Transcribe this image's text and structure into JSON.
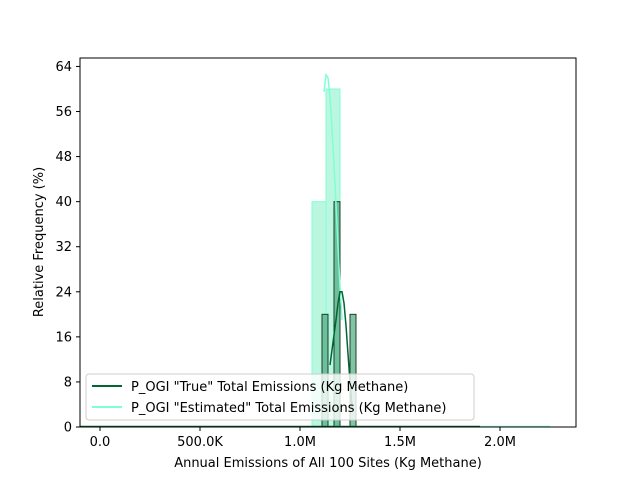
{
  "chart_data": {
    "type": "histogram",
    "xlabel": "Annual Emissions of All 100 Sites (Kg Methane)",
    "ylabel": "Relative Frequency (%)",
    "xlim": [
      -100000,
      2380000
    ],
    "ylim": [
      0,
      65.5
    ],
    "x_ticks": [
      0,
      500000,
      1000000,
      1500000,
      2000000
    ],
    "x_tick_labels": [
      "0.0",
      "500.0K",
      "1.0M",
      "1.5M",
      "2.0M"
    ],
    "y_ticks": [
      0,
      8,
      16,
      24,
      32,
      40,
      48,
      56,
      64
    ],
    "y_tick_labels": [
      "0",
      "8",
      "16",
      "24",
      "32",
      "40",
      "48",
      "56",
      "64"
    ],
    "grid": false,
    "legend_position": "lower-left",
    "series": [
      {
        "name": "P_OGI \"Estimated\" Total Emissions (Kg Methane)",
        "color": "#7fffd4",
        "fill": "#b7f5df",
        "bins": [
          {
            "x0": 1060000,
            "x1": 1130000,
            "value": 40
          },
          {
            "x0": 1130000,
            "x1": 1200000,
            "value": 60
          }
        ],
        "kde": {
          "x": [
            1120000,
            1130000,
            1140000,
            1150000,
            1160000,
            1170000,
            1180000,
            1190000,
            1200000,
            1210000
          ],
          "y": [
            59.5,
            62.5,
            62,
            58.5,
            53,
            46.5,
            39.5,
            32,
            25,
            19
          ]
        }
      },
      {
        "name": "P_OGI \"True\" Total Emissions (Kg Methane)",
        "color": "#006633",
        "fill": "#4daa7f",
        "bins": [
          {
            "x0": 1110000,
            "x1": 1140000,
            "value": 20
          },
          {
            "x0": 1170000,
            "x1": 1200000,
            "value": 40
          },
          {
            "x0": 1250000,
            "x1": 1280000,
            "value": 20
          }
        ],
        "kde": {
          "x": [
            1150000,
            1165000,
            1180000,
            1190000,
            1200000,
            1210000,
            1220000,
            1230000,
            1240000,
            1250000,
            1262000
          ],
          "y": [
            11,
            15,
            19,
            22,
            24,
            24,
            22,
            18,
            13,
            8,
            3
          ]
        }
      }
    ],
    "baseline_extent": [
      -100000,
      2250000
    ],
    "legend": [
      {
        "label": "P_OGI \"True\" Total Emissions (Kg Methane)",
        "color": "#006633"
      },
      {
        "label": "P_OGI \"Estimated\" Total Emissions (Kg Methane)",
        "color": "#7fffd4"
      }
    ]
  }
}
